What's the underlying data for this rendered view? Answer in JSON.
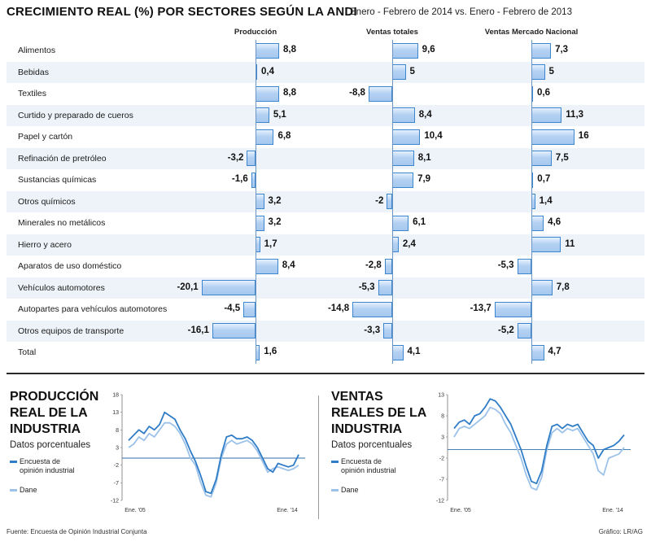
{
  "header": {
    "title": "CRECIMIENTO REAL (%) POR SECTORES SEGÚN LA ANDI",
    "subtitle": "Enero - Febrero de 2014 vs. Enero - Febrero de 2013"
  },
  "chart_data": [
    {
      "type": "bar",
      "orientation": "horizontal",
      "title": "CRECIMIENTO REAL (%) POR SECTORES SEGÚN LA ANDI",
      "subtitle": "Enero - Febrero de 2014 vs. Enero - Febrero de 2013",
      "categories": [
        "Alimentos",
        "Bebidas",
        "Textiles",
        "Curtido y preparado de cueros",
        "Papel y cartón",
        "Refinación de pretróleo",
        "Sustancias químicas",
        "Otros químicos",
        "Minerales no metálicos",
        "Hierro y acero",
        "Aparatos de uso doméstico",
        "Vehículos automotores",
        "Autopartes para vehículos automotores",
        "Otros equipos de transporte",
        "Total"
      ],
      "series": [
        {
          "name": "Producción",
          "values": [
            8.8,
            0.4,
            8.8,
            5.1,
            6.8,
            -3.2,
            -1.6,
            3.2,
            3.2,
            1.7,
            8.4,
            -20.1,
            -4.5,
            -16.1,
            1.6
          ],
          "labels": [
            "8,8",
            "0,4",
            "8,8",
            "5,1",
            "6,8",
            "-3,2",
            "-1,6",
            "3,2",
            "3,2",
            "1,7",
            "8,4",
            "-20,1",
            "-4,5",
            "-16,1",
            "1,6"
          ]
        },
        {
          "name": "Ventas totales",
          "values": [
            9.6,
            5,
            -8.8,
            8.4,
            10.4,
            8.1,
            7.9,
            -2,
            6.1,
            2.4,
            -2.8,
            -5.3,
            -14.8,
            -3.3,
            4.1
          ],
          "labels": [
            "9,6",
            "5",
            "-8,8",
            "8,4",
            "10,4",
            "8,1",
            "7,9",
            "-2",
            "6,1",
            "2,4",
            "-2,8",
            "-5,3",
            "-14,8",
            "-3,3",
            "4,1"
          ]
        },
        {
          "name": "Ventas Mercado Nacional",
          "values": [
            7.3,
            5,
            0.6,
            11.3,
            16,
            7.5,
            0.7,
            1.4,
            4.6,
            11,
            -5.3,
            7.8,
            -13.7,
            -5.2,
            4.7
          ],
          "labels": [
            "7,3",
            "5",
            "0,6",
            "11,3",
            "16",
            "7,5",
            "0,7",
            "1,4",
            "4,6",
            "11",
            "-5,3",
            "7,8",
            "-13,7",
            "-5,2",
            "4,7"
          ]
        }
      ]
    },
    {
      "type": "line",
      "title": "PRODUCCIÓN REAL DE LA INDUSTRIA",
      "subtitle": "Datos porcentuales",
      "x_tick_labels": [
        "Ene. '05",
        "Ene. '14"
      ],
      "y_ticks": [
        18,
        13,
        8,
        3,
        -2,
        -7,
        -12
      ],
      "ylim": [
        -12,
        18
      ],
      "series": [
        {
          "name": "Encuesta de opinión industrial",
          "color": "#2f7cc7",
          "values": [
            5,
            6.5,
            8,
            7,
            9,
            8,
            9.5,
            13,
            12,
            11,
            8,
            5.5,
            2,
            -1,
            -5,
            -9.5,
            -10,
            -6,
            1,
            6,
            6.5,
            5.5,
            5.5,
            6,
            5,
            3,
            0,
            -3,
            -4,
            -1.5,
            -2,
            -2.5,
            -2,
            1
          ]
        },
        {
          "name": "Dane",
          "color": "#9cc2ea",
          "values": [
            3,
            4,
            6,
            5,
            7,
            6,
            8,
            10,
            10,
            9,
            7,
            4,
            0,
            -2,
            -7,
            -10.5,
            -11,
            -7,
            0,
            4,
            5,
            4,
            4.5,
            5,
            4,
            2,
            -1,
            -4,
            -3,
            -2.5,
            -3,
            -3.5,
            -3,
            -2
          ]
        }
      ]
    },
    {
      "type": "line",
      "title": "VENTAS REALES DE LA INDUSTRIA",
      "subtitle": "Datos porcentuales",
      "x_tick_labels": [
        "Ene. '05",
        "Ene. '14"
      ],
      "y_ticks": [
        13,
        8,
        3,
        -2,
        -7,
        -12
      ],
      "ylim": [
        -12,
        13
      ],
      "series": [
        {
          "name": "Encuesta de opinión industrial",
          "color": "#2f7cc7",
          "values": [
            5,
            6.5,
            7,
            6,
            8,
            8.5,
            10,
            12,
            11.5,
            10,
            8,
            6,
            3,
            0,
            -4,
            -7.5,
            -8,
            -5,
            1,
            5.5,
            6,
            5,
            6,
            5.5,
            6,
            4,
            2,
            1,
            -2,
            0,
            0.5,
            1,
            2,
            3.5
          ]
        },
        {
          "name": "Dane",
          "color": "#9cc2ea",
          "values": [
            3,
            5,
            5.5,
            5,
            6,
            7,
            8,
            10,
            9.5,
            8.5,
            6,
            4,
            1,
            -2,
            -6,
            -9,
            -9.5,
            -6.5,
            0,
            4,
            5,
            4,
            5,
            4.5,
            5,
            3,
            1,
            -1,
            -5,
            -6,
            -2,
            -1.5,
            -1,
            0.5
          ]
        }
      ]
    }
  ],
  "production_panel": {
    "title_line1": "PRODUCCIÓN",
    "title_line2": "REAL DE LA",
    "title_line3": "INDUSTRIA",
    "subtitle": "Datos porcentuales",
    "legend_1_line1": "Encuesta de",
    "legend_1_line2": "opinión industrial",
    "legend_2": "Dane"
  },
  "sales_panel": {
    "title_line1": "VENTAS",
    "title_line2": "REALES DE LA",
    "title_line3": "INDUSTRIA",
    "subtitle": "Datos porcentuales",
    "legend_1_line1": "Encuesta de",
    "legend_1_line2": "opinión industrial",
    "legend_2": "Dane"
  },
  "footer": {
    "source": "Fuente: Encuesta de Opinión Industrial Conjunta",
    "credit": "Gráfico: LR/AG"
  }
}
